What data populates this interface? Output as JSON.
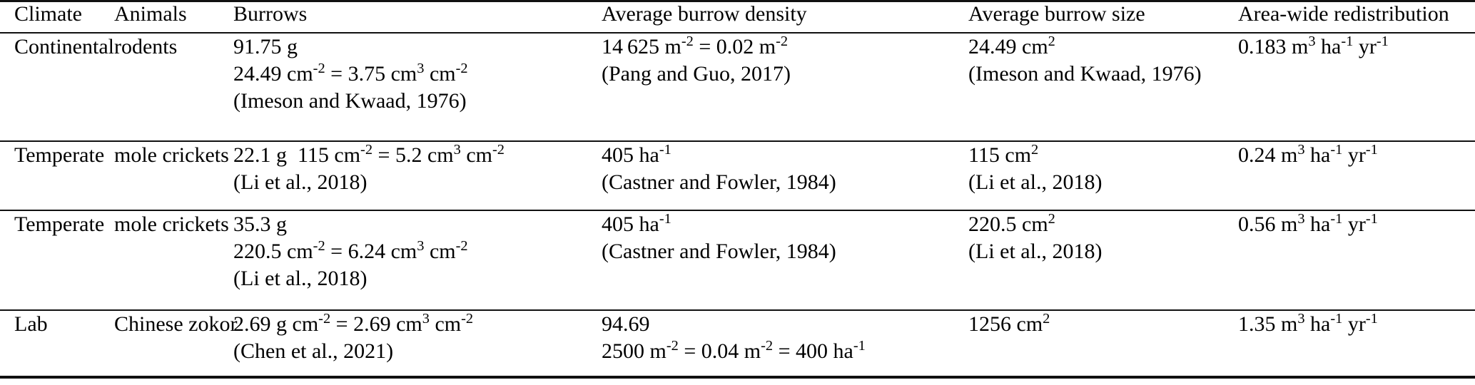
{
  "table": {
    "columns": [
      {
        "key": "climate",
        "label": "Climate"
      },
      {
        "key": "animals",
        "label": "Animals"
      },
      {
        "key": "burrows",
        "label": "Burrows"
      },
      {
        "key": "density",
        "label": "Average burrow density"
      },
      {
        "key": "size",
        "label": "Average burrow size"
      },
      {
        "key": "redistribution",
        "label": "Area-wide redistribution"
      }
    ],
    "rows": [
      {
        "climate": "Continental",
        "animals": "rodents",
        "burrows": [
          "91.75 g",
          "24.49 cm^{-2} = 3.75 cm^{3} cm^{-2}",
          "(Imeson and Kwaad, 1976)"
        ],
        "density": [
          "14 625 m^{-2} = 0.02 m^{-2}",
          "(Pang and Guo, 2017)"
        ],
        "size": [
          "24.49 cm^{2}",
          "(Imeson and Kwaad, 1976)"
        ],
        "redistribution": [
          "0.183 m^{3} ha^{-1} yr^{-1}"
        ]
      },
      {
        "climate": "Temperate",
        "animals": "mole crickets",
        "burrows": [
          "22.1 g 115 cm^{-2} = 5.2 cm^{3} cm^{-2}",
          "(Li et al., 2018)"
        ],
        "density": [
          "405 ha^{-1}",
          "(Castner and Fowler, 1984)"
        ],
        "size": [
          "115 cm^{2}",
          "(Li et al., 2018)"
        ],
        "redistribution": [
          "0.24 m^{3} ha^{-1} yr^{-1}"
        ]
      },
      {
        "climate": "Temperate",
        "animals": "mole crickets",
        "burrows": [
          "35.3 g",
          "220.5 cm^{-2} = 6.24 cm^{3} cm^{-2}",
          "(Li et al., 2018)"
        ],
        "density": [
          "405 ha^{-1}",
          "(Castner and Fowler, 1984)"
        ],
        "size": [
          "220.5 cm^{2}",
          "(Li et al., 2018)"
        ],
        "redistribution": [
          "0.56 m^{3} ha^{-1} yr^{-1}"
        ]
      },
      {
        "climate": "Lab",
        "animals": "Chinese zokor",
        "burrows": [
          "2.69 g cm^{-2} = 2.69 cm^{3} cm^{-2}",
          "(Chen et al., 2021)"
        ],
        "density": [
          "94.69",
          "2500 m^{-2} = 0.04 m^{-2} = 400 ha^{-1}"
        ],
        "size": [
          "1256 cm^{2}"
        ],
        "redistribution": [
          "1.35 m^{3} ha^{-1} yr^{-1}"
        ]
      }
    ]
  }
}
